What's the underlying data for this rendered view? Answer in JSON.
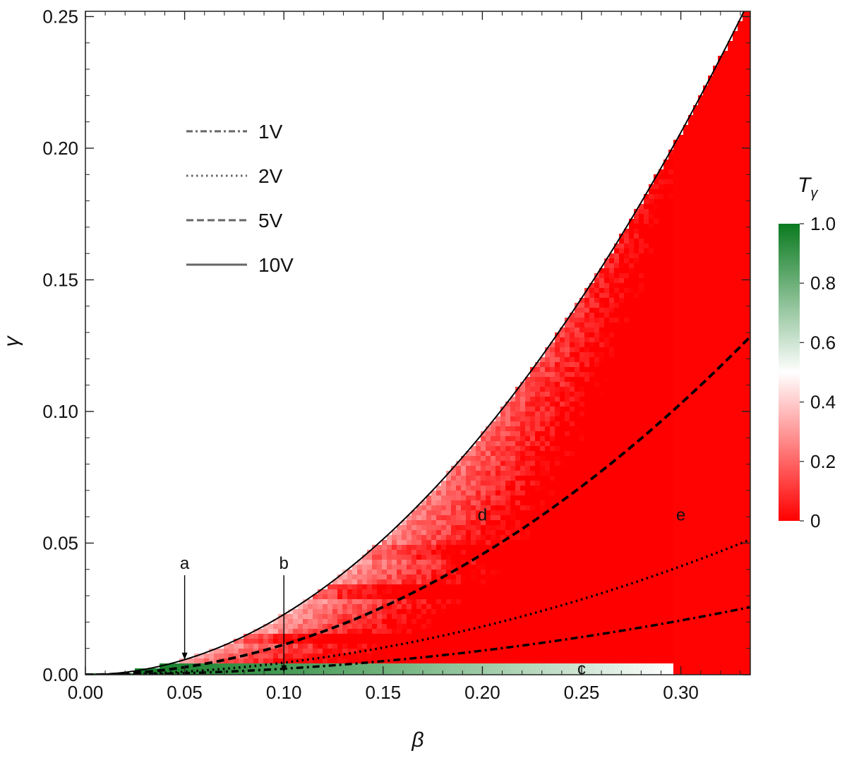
{
  "chart_data": {
    "type": "heatmap",
    "xlabel": "β",
    "ylabel": "γ",
    "xlim": [
      0,
      0.335
    ],
    "ylim": [
      0,
      0.252
    ],
    "x_ticks": [
      "0.00",
      "0.05",
      "0.10",
      "0.15",
      "0.20",
      "0.25",
      "0.30"
    ],
    "x_tick_values": [
      0,
      0.05,
      0.1,
      0.15,
      0.2,
      0.25,
      0.3
    ],
    "y_ticks": [
      "0.00",
      "0.05",
      "0.10",
      "0.15",
      "0.20",
      "0.25"
    ],
    "y_tick_values": [
      0,
      0.05,
      0.1,
      0.15,
      0.2,
      0.25
    ],
    "colorbar": {
      "title": "T",
      "title_subscript": "γ",
      "range": [
        0,
        1
      ],
      "ticks": [
        "1.0",
        "0.8",
        "0.6",
        "0.4",
        "0.2",
        "0"
      ],
      "tick_values": [
        1.0,
        0.8,
        0.6,
        0.4,
        0.2,
        0
      ],
      "colors": [
        "#ff0000",
        "#ffffff",
        "#0a7a1f"
      ]
    },
    "curves": [
      {
        "name": "1V",
        "style": "dash-dot",
        "gamma_over_beta_squared": 0.2289
      },
      {
        "name": "2V",
        "style": "dotted",
        "gamma_over_beta_squared": 0.4577
      },
      {
        "name": "5V",
        "style": "dashed",
        "gamma_over_beta_squared": 1.1443
      },
      {
        "name": "10V",
        "style": "solid",
        "gamma_over_beta_squared": 2.2886
      }
    ],
    "legend_position": "upper-left",
    "annotations": [
      {
        "label": "a",
        "beta": 0.05,
        "gamma": 0.0057,
        "arrow": true
      },
      {
        "label": "b",
        "beta": 0.1,
        "gamma": 0.0009,
        "arrow": true
      },
      {
        "label": "c",
        "beta": 0.25,
        "gamma": 0.0025,
        "arrow": false
      },
      {
        "label": "d",
        "beta": 0.2,
        "gamma": 0.061,
        "arrow": false
      },
      {
        "label": "e",
        "beta": 0.3,
        "gamma": 0.061,
        "arrow": false
      }
    ]
  }
}
